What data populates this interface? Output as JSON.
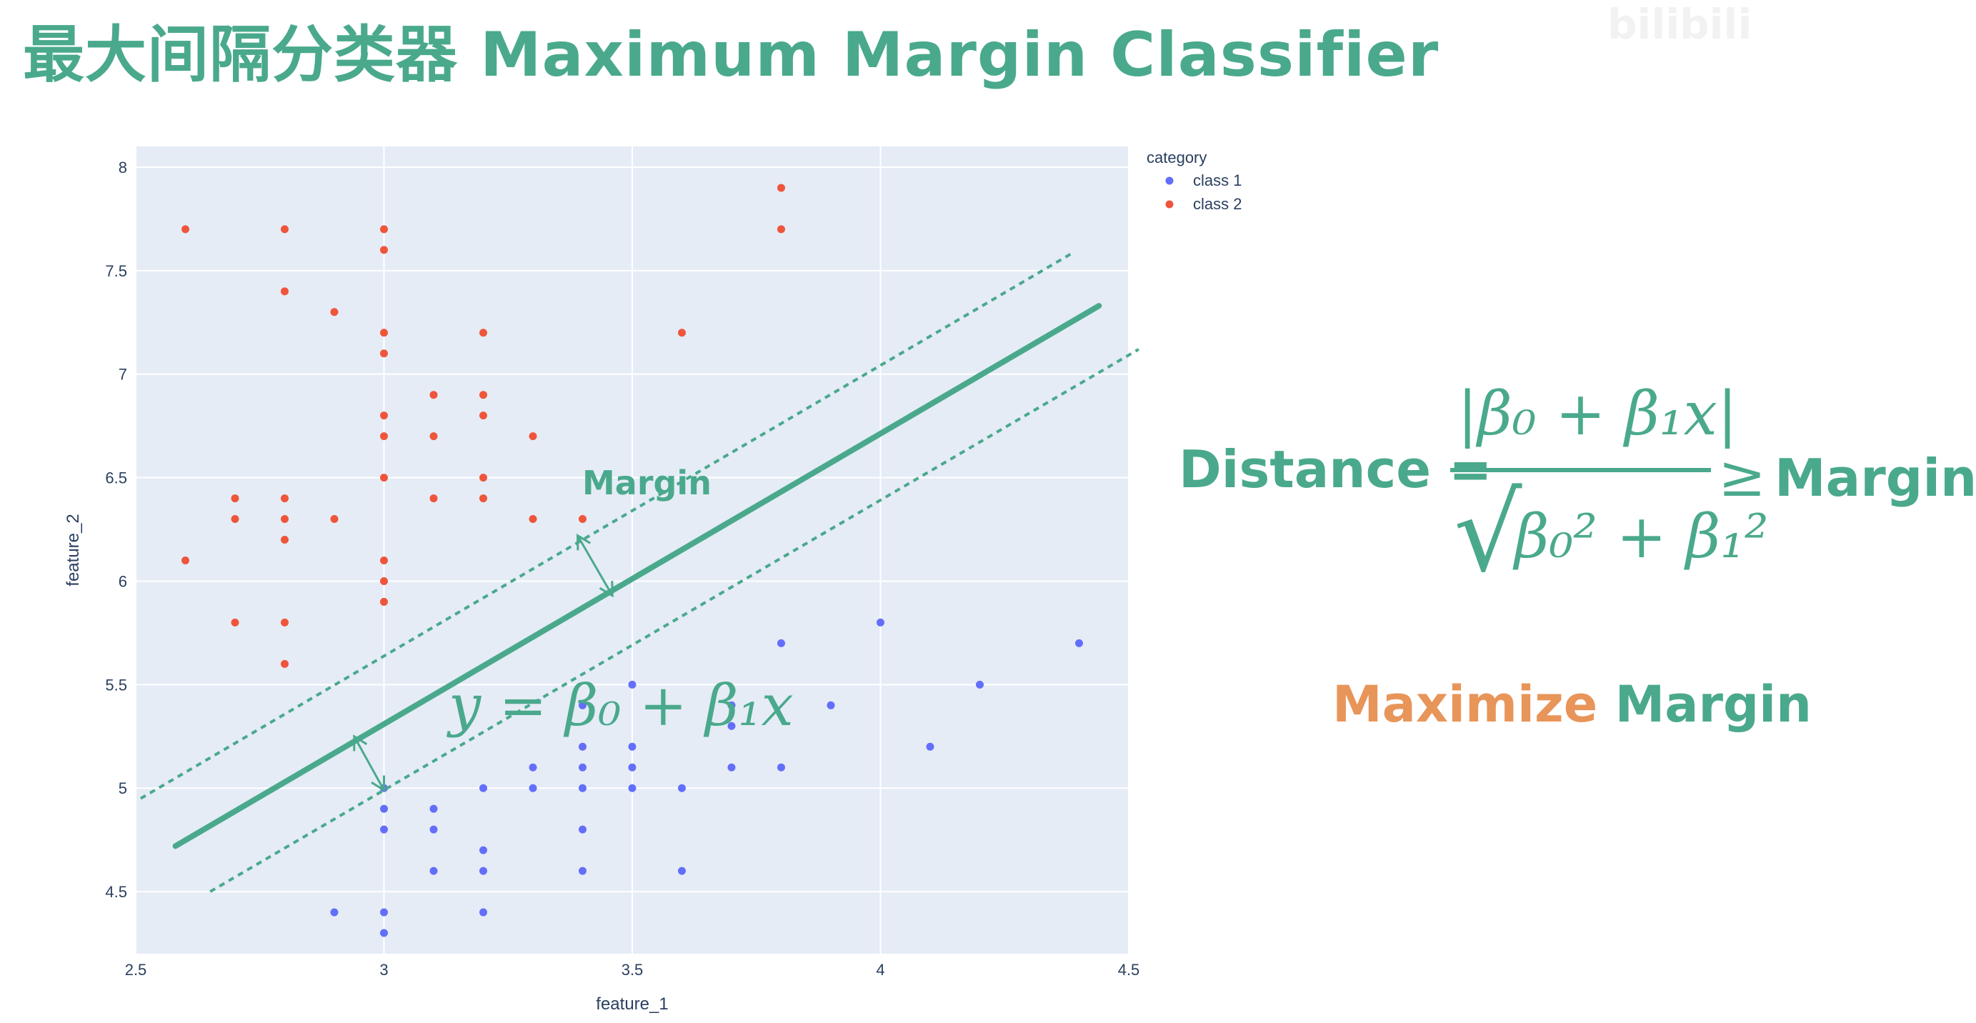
{
  "slide_title": "最大间隔分类器 Maximum Margin Classifier",
  "watermark": "bilibili",
  "colors": {
    "accent": "#4aa98c",
    "orange": "#e8955a",
    "class1": "#636efa",
    "class2": "#ef553b",
    "plot_bg": "#e5ecf6"
  },
  "chart_data": {
    "type": "scatter",
    "xlabel": "feature_1",
    "ylabel": "feature_2",
    "xlim": [
      2.5,
      4.5
    ],
    "ylim": [
      4.2,
      8.1
    ],
    "x_ticks": [
      "2.5",
      "3",
      "3.5",
      "4",
      "4.5"
    ],
    "y_ticks": [
      "4.5",
      "5",
      "5.5",
      "6",
      "6.5",
      "7",
      "7.5",
      "8"
    ],
    "grid": true,
    "legend": {
      "title": "category",
      "position": "top-right",
      "entries": [
        "class 1",
        "class 2"
      ]
    },
    "series": [
      {
        "name": "class 1",
        "color": "#636efa",
        "points": [
          [
            2.9,
            4.4
          ],
          [
            3.0,
            4.4
          ],
          [
            3.0,
            4.3
          ],
          [
            3.0,
            4.9
          ],
          [
            3.0,
            4.8
          ],
          [
            3.0,
            5.0
          ],
          [
            3.1,
            4.9
          ],
          [
            3.1,
            4.8
          ],
          [
            3.1,
            4.6
          ],
          [
            3.2,
            5.0
          ],
          [
            3.2,
            4.7
          ],
          [
            3.2,
            4.6
          ],
          [
            3.2,
            4.4
          ],
          [
            3.3,
            5.1
          ],
          [
            3.3,
            5.0
          ],
          [
            3.4,
            5.4
          ],
          [
            3.4,
            5.2
          ],
          [
            3.4,
            5.1
          ],
          [
            3.4,
            5.0
          ],
          [
            3.4,
            4.8
          ],
          [
            3.4,
            4.6
          ],
          [
            3.5,
            5.5
          ],
          [
            3.5,
            5.2
          ],
          [
            3.5,
            5.1
          ],
          [
            3.5,
            5.0
          ],
          [
            3.6,
            5.0
          ],
          [
            3.6,
            4.6
          ],
          [
            3.7,
            5.4
          ],
          [
            3.7,
            5.3
          ],
          [
            3.7,
            5.1
          ],
          [
            3.8,
            5.7
          ],
          [
            3.8,
            5.1
          ],
          [
            3.9,
            5.4
          ],
          [
            4.0,
            5.8
          ],
          [
            4.1,
            5.2
          ],
          [
            4.2,
            5.5
          ],
          [
            4.4,
            5.7
          ]
        ]
      },
      {
        "name": "class 2",
        "color": "#ef553b",
        "points": [
          [
            2.6,
            7.7
          ],
          [
            2.6,
            6.1
          ],
          [
            2.7,
            6.4
          ],
          [
            2.7,
            6.3
          ],
          [
            2.7,
            5.8
          ],
          [
            2.8,
            7.7
          ],
          [
            2.8,
            7.4
          ],
          [
            2.8,
            6.4
          ],
          [
            2.8,
            6.3
          ],
          [
            2.8,
            6.2
          ],
          [
            2.8,
            5.8
          ],
          [
            2.8,
            5.6
          ],
          [
            2.9,
            7.3
          ],
          [
            2.9,
            6.3
          ],
          [
            3.0,
            7.7
          ],
          [
            3.0,
            7.6
          ],
          [
            3.0,
            7.2
          ],
          [
            3.0,
            7.1
          ],
          [
            3.0,
            6.8
          ],
          [
            3.0,
            6.7
          ],
          [
            3.0,
            6.5
          ],
          [
            3.0,
            6.1
          ],
          [
            3.0,
            6.0
          ],
          [
            3.0,
            5.9
          ],
          [
            3.1,
            6.9
          ],
          [
            3.1,
            6.7
          ],
          [
            3.1,
            6.4
          ],
          [
            3.2,
            7.2
          ],
          [
            3.2,
            6.9
          ],
          [
            3.2,
            6.8
          ],
          [
            3.2,
            6.5
          ],
          [
            3.2,
            6.4
          ],
          [
            3.3,
            6.7
          ],
          [
            3.3,
            6.3
          ],
          [
            3.4,
            6.3
          ],
          [
            3.6,
            7.2
          ],
          [
            3.8,
            7.9
          ],
          [
            3.8,
            7.7
          ]
        ]
      }
    ],
    "hyperplane": {
      "start": [
        2.58,
        4.72
      ],
      "end": [
        4.44,
        7.33
      ]
    },
    "margin_upper": {
      "start": [
        2.51,
        4.95
      ],
      "end": [
        4.39,
        7.59
      ]
    },
    "margin_lower": {
      "start": [
        2.65,
        4.5
      ],
      "end": [
        4.52,
        7.12
      ]
    },
    "annotations": {
      "margin_label": "Margin",
      "line_equation": "y = β₀ + β₁x"
    }
  },
  "formula": {
    "lhs": "Distance =",
    "numerator": "|β₀ + β₁x|",
    "denominator": "β₀² + β₁²",
    "relation": "≥",
    "rhs": "Margin"
  },
  "tagline": {
    "word1": "Maximize",
    "word2": "Margin"
  }
}
